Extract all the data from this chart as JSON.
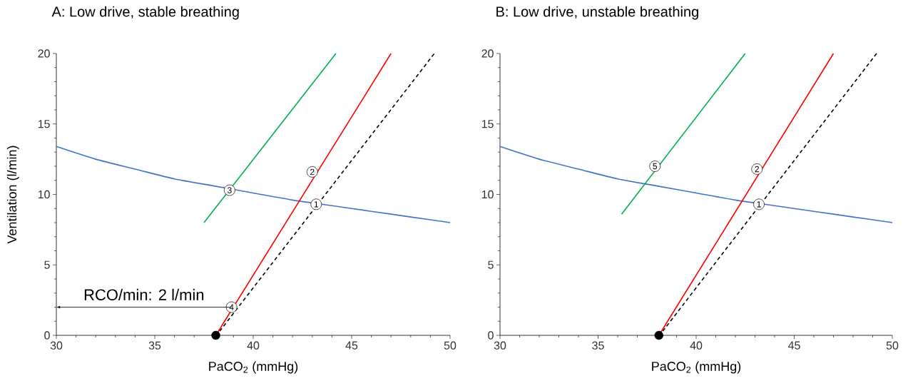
{
  "chart_data": [
    {
      "type": "line",
      "title": "A: Low drive, stable breathing",
      "xlabel": "PaCO$_{2}$ (mmHg)",
      "ylabel": "Ventilation (l/min)",
      "xlim": [
        30,
        50
      ],
      "ylim": [
        0,
        20
      ],
      "xticks": [
        30,
        35,
        40,
        45,
        50
      ],
      "yticks": [
        0,
        5,
        10,
        15,
        20
      ],
      "grid": false,
      "series": [
        {
          "color": "#4472c4",
          "x": [
            30,
            32,
            34,
            36,
            38,
            40,
            42,
            44,
            46,
            48,
            50
          ],
          "values": [
            13.4,
            12.5,
            11.8,
            11.1,
            10.6,
            10.1,
            9.6,
            9.2,
            8.8,
            8.4,
            8.0
          ]
        },
        {
          "color": "#00b050",
          "x": [
            37.5,
            44.2
          ],
          "values": [
            8,
            20
          ]
        },
        {
          "color": "#ff0000",
          "x": [
            38.1,
            47
          ],
          "values": [
            0,
            20
          ]
        },
        {
          "color": "#000000",
          "line_style": "dashed",
          "x": [
            38.3,
            49.2
          ],
          "values": [
            0.3,
            20
          ]
        },
        {
          "type": "scatter",
          "marker": "circle",
          "color": "#000000",
          "x": [
            38.1
          ],
          "values": [
            0
          ]
        }
      ],
      "ref_lines": [
        {
          "axis": "y",
          "value": 2,
          "label": "RCO/min: 2 l/min",
          "color": "#000000"
        }
      ],
      "annotations": [
        {
          "text": "1",
          "x": 43.2,
          "y": 9.3
        },
        {
          "text": "2",
          "x": 43.0,
          "y": 11.6
        },
        {
          "text": "3",
          "x": 38.8,
          "y": 10.3
        },
        {
          "text": "4",
          "x": 38.9,
          "y": 2
        }
      ]
    },
    {
      "type": "line",
      "title": "B: Low drive, unstable breathing",
      "xlabel": "PaCO$_{2}$ (mmHg)",
      "xlim": [
        30,
        50
      ],
      "ylim": [
        0,
        20
      ],
      "xticks": [
        30,
        35,
        40,
        45,
        50
      ],
      "yticks": [
        0,
        5,
        10,
        15,
        20
      ],
      "grid": false,
      "series": [
        {
          "color": "#4472c4",
          "x": [
            30,
            32,
            34,
            36,
            38,
            40,
            42,
            44,
            46,
            48,
            50
          ],
          "values": [
            13.4,
            12.5,
            11.8,
            11.1,
            10.6,
            10.1,
            9.6,
            9.2,
            8.8,
            8.4,
            8.0
          ]
        },
        {
          "color": "#00b050",
          "x": [
            36.2,
            42.5
          ],
          "values": [
            8.6,
            20
          ]
        },
        {
          "color": "#ff0000",
          "x": [
            38.1,
            47
          ],
          "values": [
            0,
            20
          ]
        },
        {
          "color": "#000000",
          "line_style": "dashed",
          "x": [
            38.3,
            49.2
          ],
          "values": [
            0.3,
            20
          ]
        },
        {
          "type": "scatter",
          "marker": "circle",
          "color": "#000000",
          "x": [
            38.1
          ],
          "values": [
            0
          ]
        }
      ],
      "annotations": [
        {
          "text": "1",
          "x": 43.2,
          "y": 9.3
        },
        {
          "text": "2",
          "x": 43.1,
          "y": 11.8
        },
        {
          "text": "5",
          "x": 37.9,
          "y": 12.0
        }
      ]
    }
  ]
}
